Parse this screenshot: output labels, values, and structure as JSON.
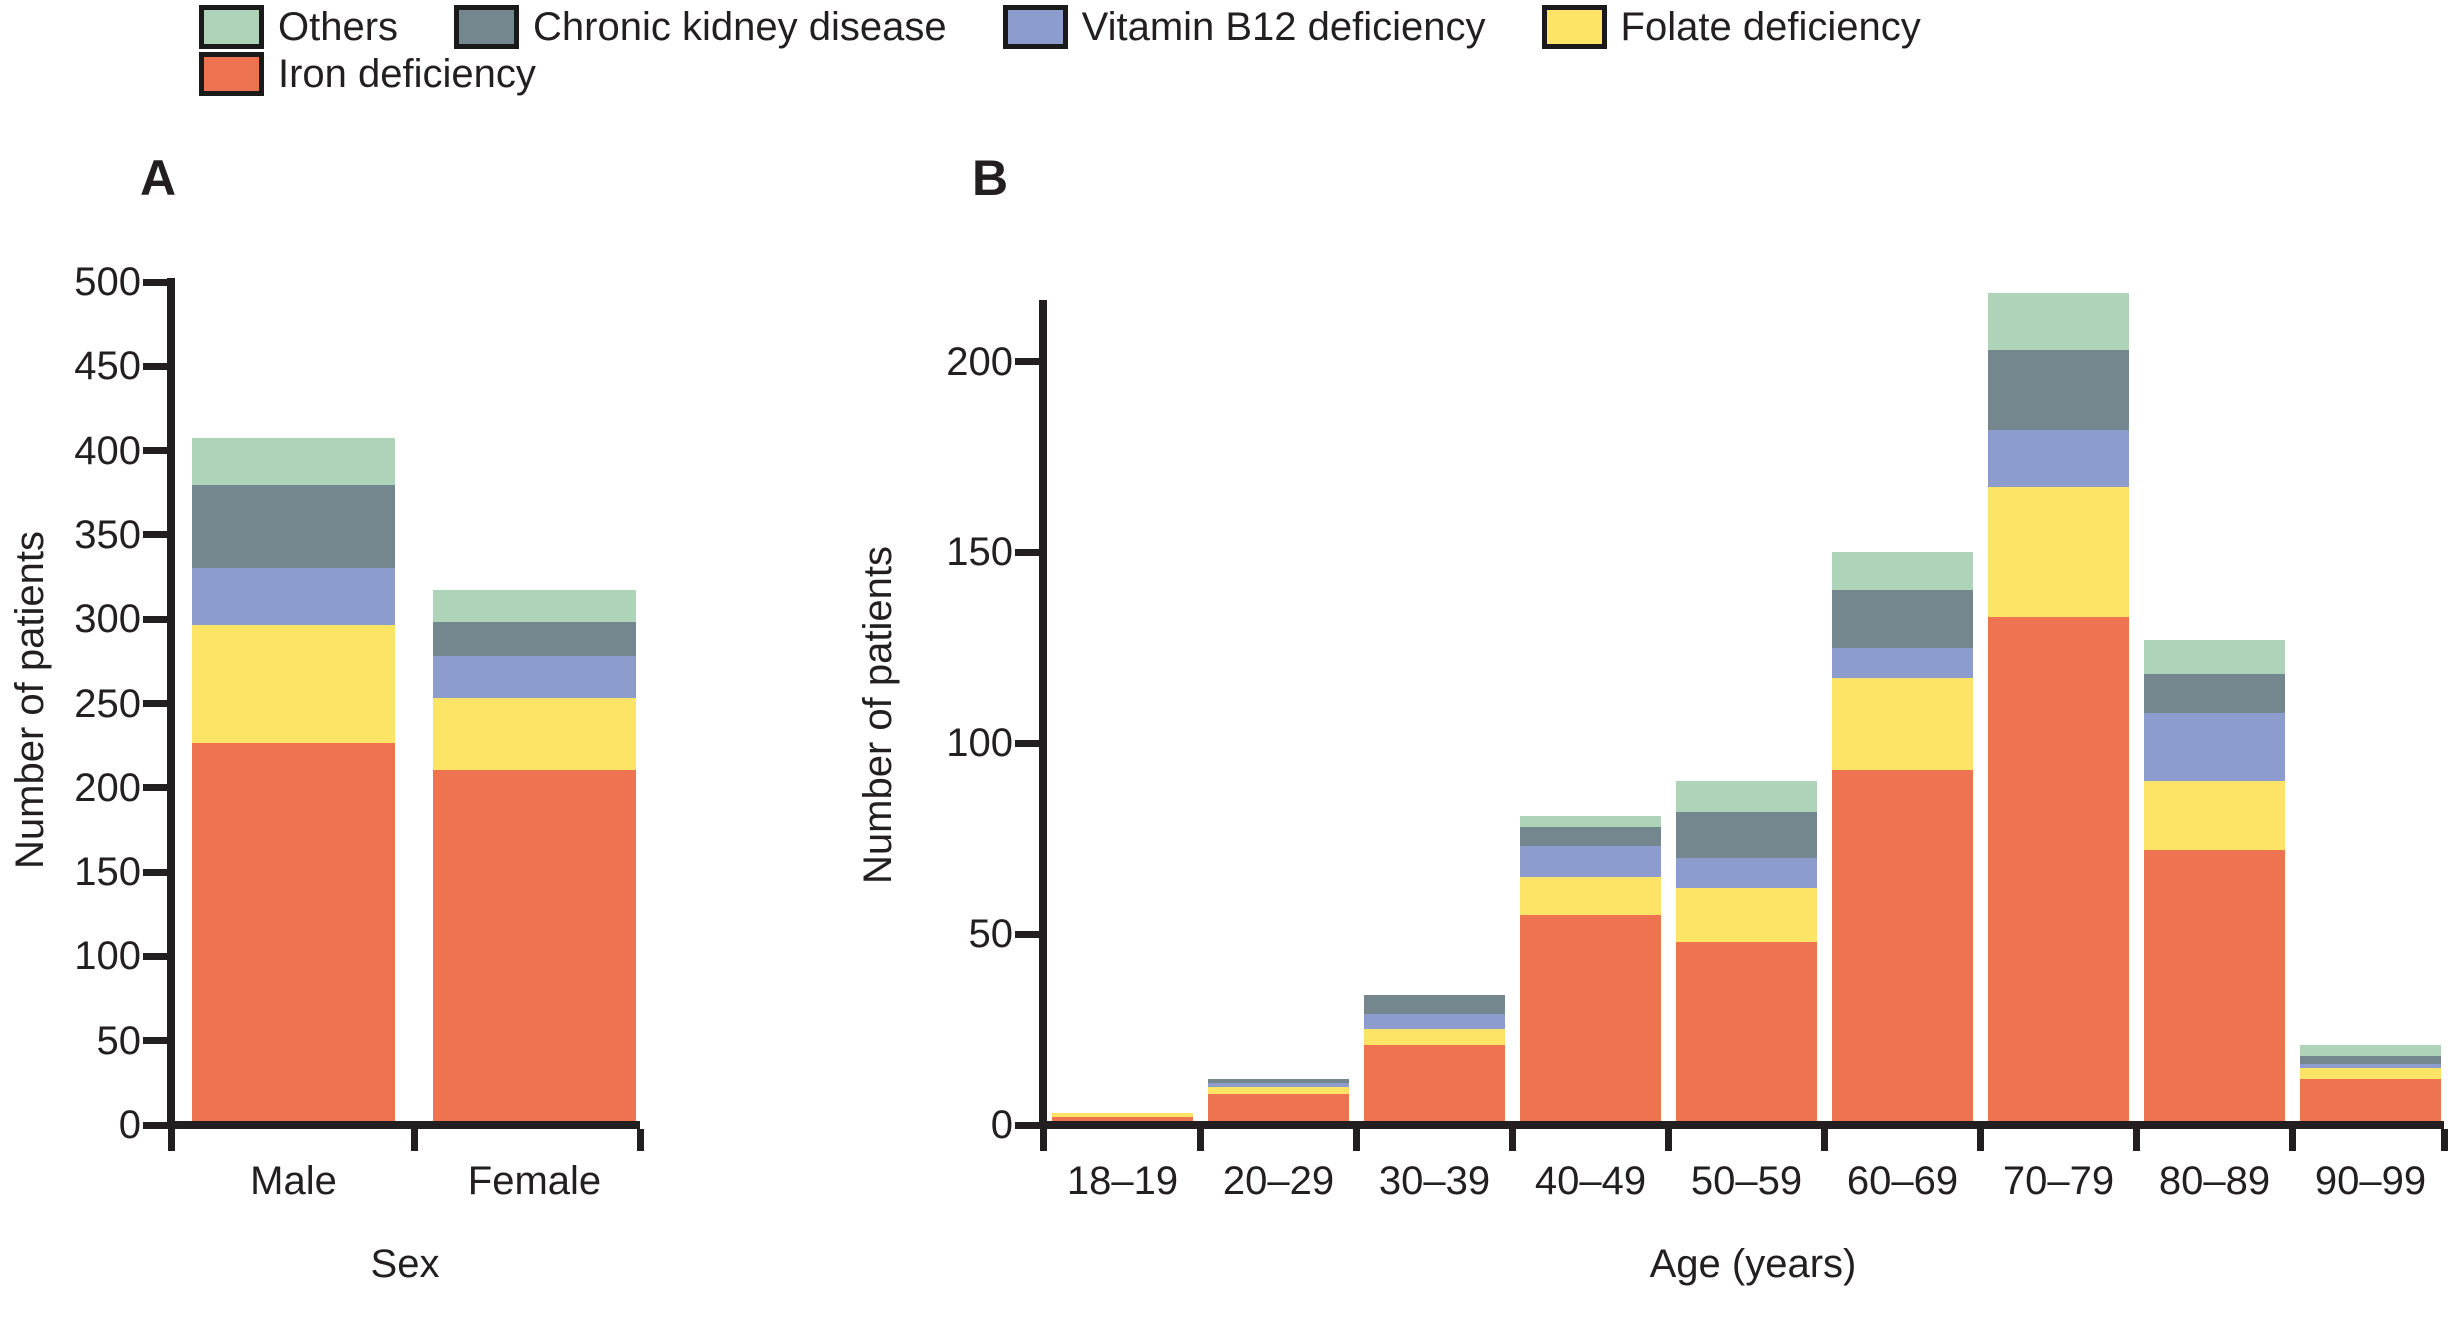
{
  "legend": {
    "rows": [
      [
        {
          "label": "Others",
          "color": "#add4b8"
        },
        {
          "label": "Chronic kidney disease",
          "color": "#74878f"
        },
        {
          "label": "Vitamin B12 deficiency",
          "color": "#8b9ccd"
        },
        {
          "label": "Folate deficiency",
          "color": "#fde366"
        }
      ],
      [
        {
          "label": "Iron deficiency",
          "color": "#ee7351"
        }
      ]
    ]
  },
  "colors": {
    "iron": "#ee7351",
    "folate": "#fde366",
    "b12": "#8b9ccd",
    "ckd": "#74878f",
    "others": "#add4b8",
    "axis": "#231f20"
  },
  "chart_data": [
    {
      "type": "bar",
      "stacked": true,
      "panel_label": "A",
      "xlabel": "Sex",
      "ylabel": "Number of patients",
      "ylim": [
        0,
        500
      ],
      "ytick_step": 50,
      "ytick_max": 500,
      "grid": false,
      "legend_position": "top",
      "categories": [
        "Male",
        "Female"
      ],
      "series": [
        {
          "name": "Iron deficiency",
          "color": "#ee7351",
          "values": [
            224,
            208
          ]
        },
        {
          "name": "Folate deficiency",
          "color": "#fde366",
          "values": [
            70,
            43
          ]
        },
        {
          "name": "Vitamin B12 deficiency",
          "color": "#8b9ccd",
          "values": [
            34,
            25
          ]
        },
        {
          "name": "Chronic kidney disease",
          "color": "#74878f",
          "values": [
            49,
            20
          ]
        },
        {
          "name": "Others",
          "color": "#add4b8",
          "values": [
            28,
            19
          ]
        }
      ],
      "totals": [
        405,
        315
      ]
    },
    {
      "type": "bar",
      "stacked": true,
      "panel_label": "B",
      "xlabel": "Age (years)",
      "ylabel": "Number of patients",
      "ylim": [
        0,
        220
      ],
      "ytick_step": 50,
      "ytick_max": 200,
      "grid": false,
      "legend_position": "top",
      "categories": [
        "18–19",
        "20–29",
        "30–39",
        "40–49",
        "50–59",
        "60–69",
        "70–79",
        "80–89",
        "90–99"
      ],
      "series": [
        {
          "name": "Iron deficiency",
          "color": "#ee7351",
          "values": [
            1,
            7,
            20,
            54,
            47,
            92,
            132,
            71,
            11
          ]
        },
        {
          "name": "Folate deficiency",
          "color": "#fde366",
          "values": [
            1,
            2,
            4,
            10,
            14,
            24,
            34,
            18,
            3
          ]
        },
        {
          "name": "Vitamin B12 deficiency",
          "color": "#8b9ccd",
          "values": [
            0,
            1,
            4,
            8,
            8,
            8,
            15,
            18,
            1
          ]
        },
        {
          "name": "Chronic kidney disease",
          "color": "#74878f",
          "values": [
            0,
            1,
            5,
            5,
            12,
            15,
            21,
            10,
            2
          ]
        },
        {
          "name": "Others",
          "color": "#add4b8",
          "values": [
            0,
            0,
            0,
            3,
            8,
            10,
            15,
            9,
            3
          ]
        }
      ],
      "totals": [
        2,
        11,
        33,
        80,
        89,
        149,
        217,
        126,
        20
      ]
    }
  ]
}
